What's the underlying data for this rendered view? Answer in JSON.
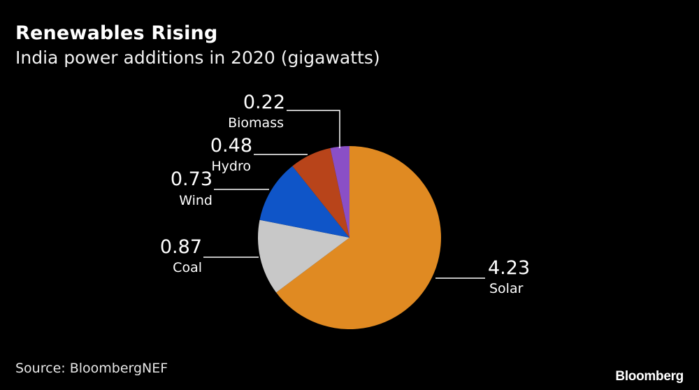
{
  "header": {
    "title": "Renewables Rising",
    "subtitle": "India power additions in 2020 (gigawatts)"
  },
  "footer": {
    "source": "Source: BloombergNEF",
    "logo": "Bloomberg"
  },
  "chart_data": {
    "type": "pie",
    "title": "Renewables Rising",
    "subtitle": "India power additions in 2020 (gigawatts)",
    "slices": [
      {
        "label": "Solar",
        "value": 4.23,
        "display": "4.23",
        "color": "#E08A22"
      },
      {
        "label": "Coal",
        "value": 0.87,
        "display": "0.87",
        "color": "#C8C8C8"
      },
      {
        "label": "Wind",
        "value": 0.73,
        "display": "0.73",
        "color": "#0F55C8"
      },
      {
        "label": "Hydro",
        "value": 0.48,
        "display": "0.48",
        "color": "#B8441A"
      },
      {
        "label": "Biomass",
        "value": 0.22,
        "display": "0.22",
        "color": "#8A4FC6"
      }
    ]
  }
}
